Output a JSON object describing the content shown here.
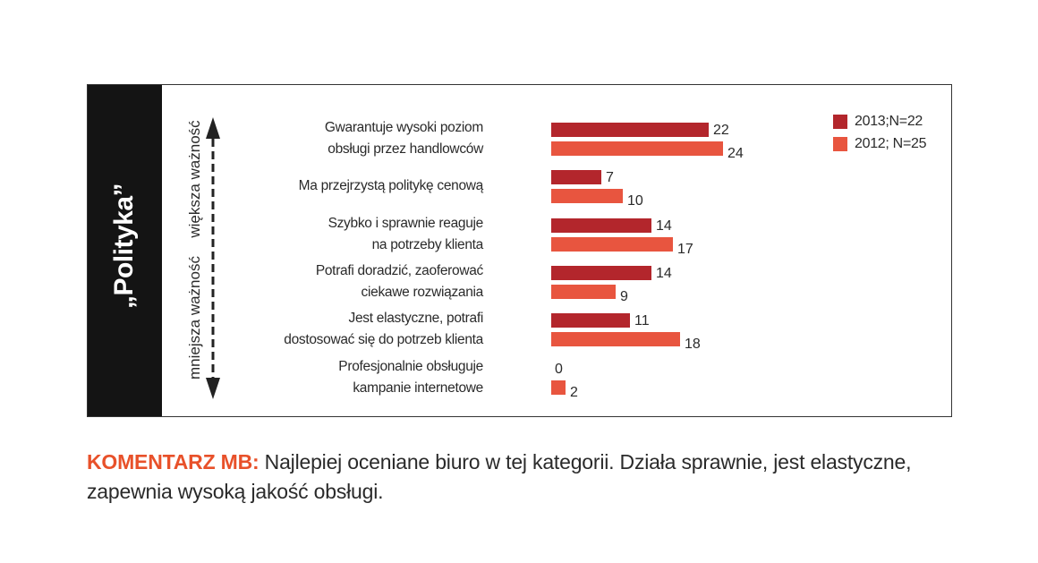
{
  "chart_data": {
    "type": "bar",
    "orientation": "horizontal",
    "title": "„Polityka”",
    "ylabel_high": "większa ważność",
    "ylabel_low": "mniejsza ważność",
    "categories": [
      [
        "Gwarantuje wysoki poziom",
        "obsługi przez handlowców"
      ],
      [
        "Ma przejrzystą politykę cenową"
      ],
      [
        "Szybko i sprawnie reaguje",
        "na potrzeby klienta"
      ],
      [
        "Potrafi doradzić, zaoferować",
        "ciekawe rozwiązania"
      ],
      [
        "Jest elastyczne, potrafi",
        "dostosować się do potrzeb klienta"
      ],
      [
        "Profesjonalnie obsługuje",
        "kampanie internetowe"
      ]
    ],
    "series": [
      {
        "name": "2013;N=22",
        "color": "#b3262c",
        "values": [
          22,
          7,
          14,
          14,
          11,
          0
        ]
      },
      {
        "name": "2012; N=25",
        "color": "#e8553f",
        "values": [
          24,
          10,
          17,
          9,
          18,
          2
        ]
      }
    ],
    "legend": "top-right",
    "grid": false
  },
  "comment": {
    "label": "KOMENTARZ MB:",
    "text": "Najlepiej oceniane biuro w tej kategorii.  Działa sprawnie, jest elastyczne, zapewnia wysoką jakość obsługi."
  }
}
